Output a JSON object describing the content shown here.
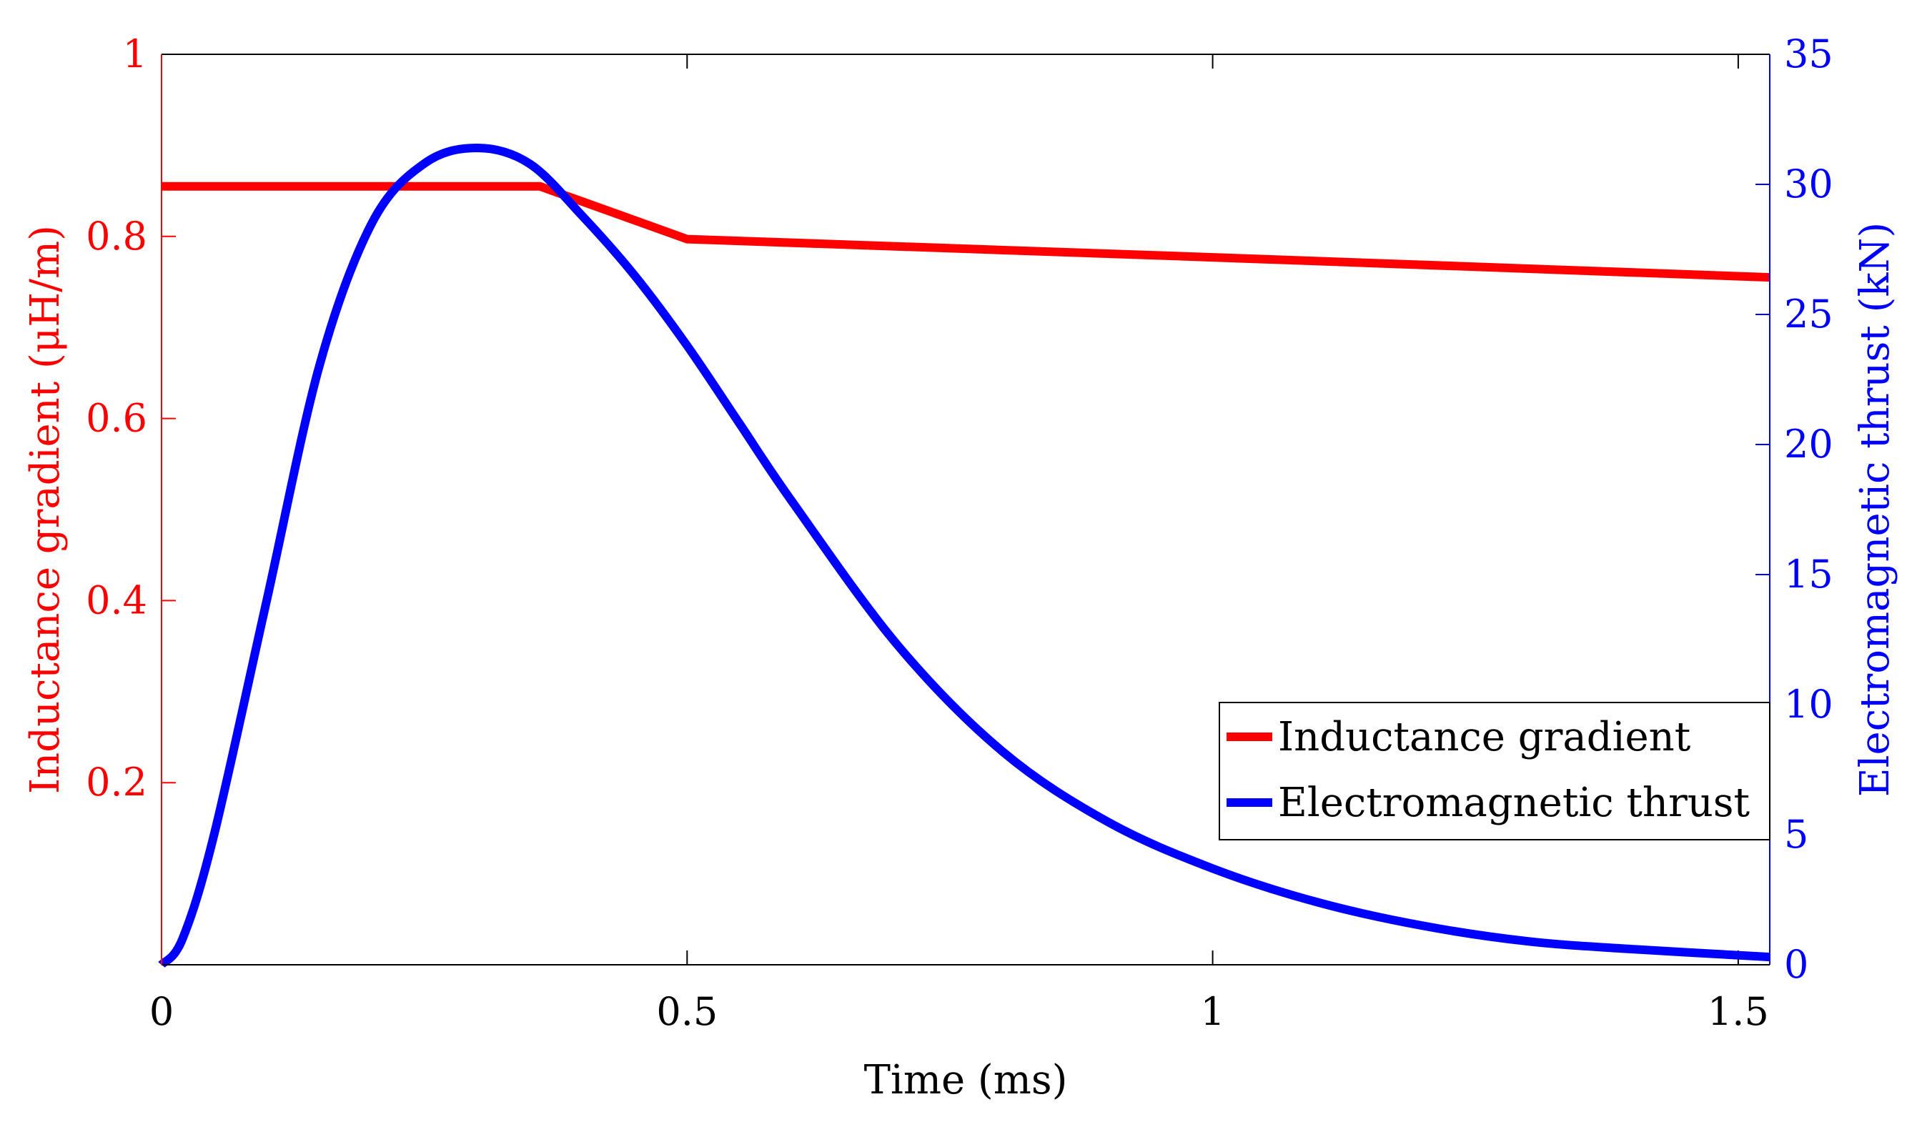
{
  "chart_data": {
    "type": "line",
    "title": "",
    "xlabel": "Time (ms)",
    "ylabel_left": "Inductance gradient (μH/m)",
    "ylabel_right": "Electromagnetic thrust (kN)",
    "xlim": [
      0,
      1.53
    ],
    "ylim_left": [
      0,
      1
    ],
    "ylim_right": [
      0,
      35
    ],
    "x_ticks": [
      {
        "value": 0,
        "label": "0"
      },
      {
        "value": 0.5,
        "label": "0.5"
      },
      {
        "value": 1,
        "label": "1"
      },
      {
        "value": 1.5,
        "label": "1.5"
      }
    ],
    "y_left_ticks": [
      {
        "value": 0.2,
        "label": "0.2"
      },
      {
        "value": 0.4,
        "label": "0.4"
      },
      {
        "value": 0.6,
        "label": "0.6"
      },
      {
        "value": 0.8,
        "label": "0.8"
      },
      {
        "value": 1,
        "label": "1"
      }
    ],
    "y_right_ticks": [
      {
        "value": 0,
        "label": "0"
      },
      {
        "value": 5,
        "label": "5"
      },
      {
        "value": 10,
        "label": "10"
      },
      {
        "value": 15,
        "label": "15"
      },
      {
        "value": 20,
        "label": "20"
      },
      {
        "value": 25,
        "label": "25"
      },
      {
        "value": 30,
        "label": "30"
      },
      {
        "value": 35,
        "label": "35"
      }
    ],
    "legend_position": "lower-right",
    "grid": false,
    "series": [
      {
        "name": "Inductance gradient",
        "axis": "left",
        "color": "#ff0000",
        "x": [
          0,
          0.36,
          0.5,
          1.0,
          1.53
        ],
        "y": [
          0.855,
          0.855,
          0.797,
          0.777,
          0.755
        ]
      },
      {
        "name": "Electromagnetic thrust",
        "axis": "right",
        "color": "#0000ff",
        "x": [
          0,
          0.02,
          0.05,
          0.1,
          0.15,
          0.2,
          0.25,
          0.3,
          0.35,
          0.4,
          0.45,
          0.5,
          0.55,
          0.6,
          0.7,
          0.8,
          0.9,
          1.0,
          1.1,
          1.2,
          1.3,
          1.4,
          1.53
        ],
        "y": [
          0,
          1.0,
          5.0,
          14.0,
          23.0,
          28.5,
          30.8,
          31.4,
          30.8,
          28.8,
          26.5,
          23.8,
          20.8,
          17.8,
          12.3,
          8.2,
          5.5,
          3.7,
          2.4,
          1.5,
          0.9,
          0.6,
          0.3
        ]
      }
    ]
  }
}
